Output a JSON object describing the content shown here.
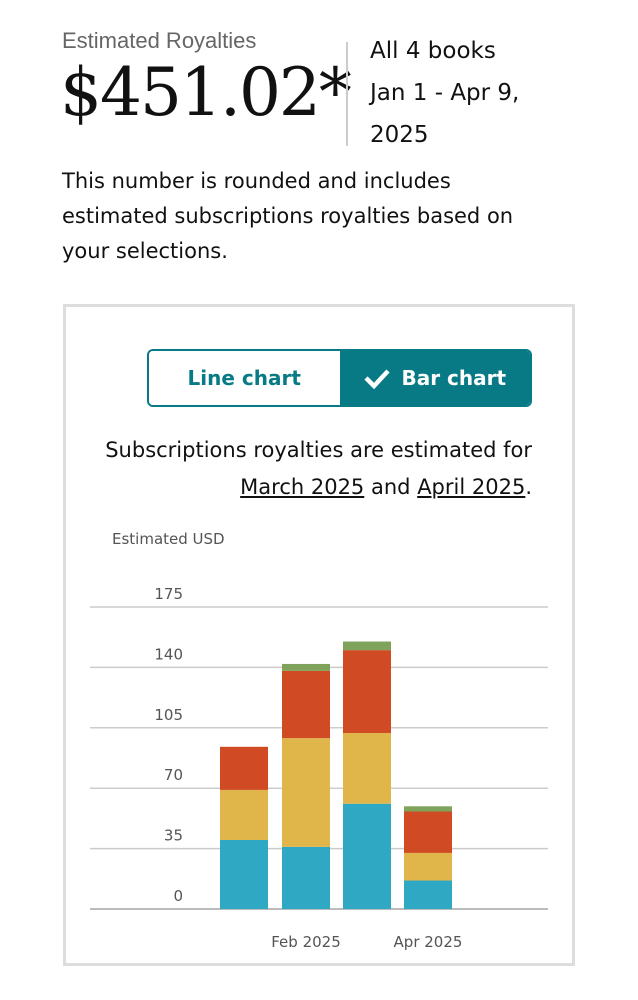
{
  "header": {
    "label": "Estimated Royalties",
    "amount": "$451.02*",
    "books": "All 4 books",
    "range_line1": "Jan 1 - Apr 9,",
    "range_line2": "2025"
  },
  "description": "This number is rounded and includes estimated subscriptions royalties based on your selections.",
  "toggle": {
    "line": "Line chart",
    "bar": "Bar chart",
    "selected": "bar",
    "check_icon": "check-icon"
  },
  "note": {
    "prefix": "Subscriptions royalties are estimated for",
    "link1": "March 2025",
    "mid": "and",
    "link2": "April 2025",
    "suffix": "."
  },
  "chart_data": {
    "type": "bar",
    "stacked": true,
    "ylabel": "Estimated USD",
    "ylim": [
      0,
      175
    ],
    "yticks": [
      0,
      35,
      70,
      105,
      140,
      175
    ],
    "categories": [
      "Jan 2025",
      "Feb 2025",
      "Mar 2025",
      "Apr 2025"
    ],
    "xtick_labels": [
      "Feb 2025",
      "Apr 2025"
    ],
    "grid": true,
    "series": [
      {
        "color": "#2fa8c4",
        "values": [
          40,
          36,
          61,
          16.5
        ]
      },
      {
        "color": "#e0b54a",
        "values": [
          29,
          63,
          41,
          16
        ]
      },
      {
        "color": "#d04a24",
        "values": [
          25,
          39,
          48,
          24
        ]
      },
      {
        "color": "#7fa35a",
        "values": [
          0,
          4,
          5,
          3
        ]
      }
    ]
  }
}
